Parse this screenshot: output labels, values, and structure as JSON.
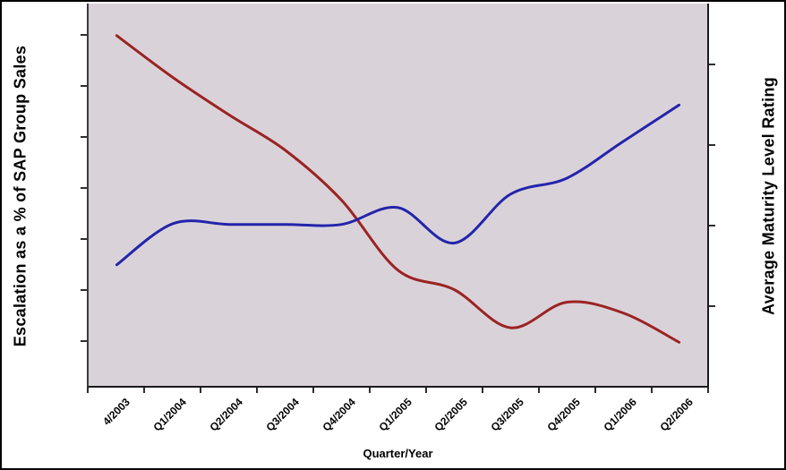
{
  "chart_data": {
    "type": "line",
    "title": "",
    "xlabel": "Quarter/Year",
    "left_ylabel": "Escalation as a % of SAP Group Sales",
    "right_ylabel": "Average Maturity Level Rating",
    "legend": "none",
    "grid": "off",
    "plot_bg_color": "#d9d3d9",
    "value_scale_note": "both value axes show tick marks only, no numeric labels; series values are expressed as percent of plot-area height (0 = bottom axis, 100 = top)",
    "categories": [
      "4/2003",
      "Q1/2004",
      "Q2/2004",
      "Q3/2004",
      "Q4/2004",
      "Q1/2005",
      "Q2/2005",
      "Q3/2005",
      "Q4/2005",
      "Q1/2006",
      "Q2/2006"
    ],
    "series": [
      {
        "name": "Escalation as a % of SAP Group Sales",
        "axis": "left",
        "color": "#9b2323",
        "smooth": true,
        "values_pct_of_plot_height": [
          91.6,
          80.6,
          70.8,
          61.5,
          48.4,
          30.1,
          25.0,
          15.0,
          21.7,
          18.9,
          11.2
        ]
      },
      {
        "name": "Average Maturity Level Rating",
        "axis": "right",
        "color": "#2424ab",
        "smooth": true,
        "values_pct_of_plot_height": [
          31.5,
          42.3,
          42.1,
          42.1,
          42.1,
          46.5,
          37.2,
          50.0,
          54.2,
          63.8,
          73.4
        ]
      }
    ],
    "axis_layout_hints": {
      "left_axis_tick_count": 7,
      "right_axis_tick_count": 4,
      "x_axis_boundary_tick_count": 12,
      "ticks_have_labels": false
    }
  }
}
